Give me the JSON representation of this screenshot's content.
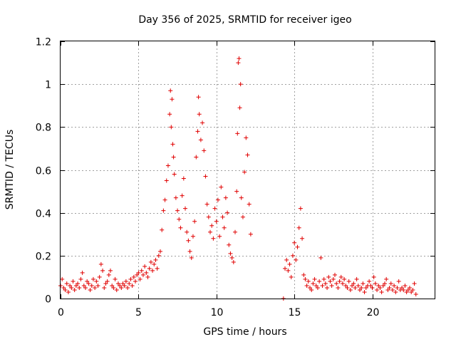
{
  "chart_data": {
    "type": "scatter",
    "title": "Day 356 of 2025, SRMTID for receiver igeo",
    "xlabel": "GPS time / hours",
    "ylabel": "SRMTID / TECUs",
    "xlim": [
      0,
      24
    ],
    "ylim": [
      0,
      1.2
    ],
    "xticks": [
      0,
      5,
      10,
      15,
      20
    ],
    "xtick_labels": [
      "0",
      "5",
      "10",
      "15",
      "20"
    ],
    "yticks": [
      0,
      0.2,
      0.4,
      0.6,
      0.8,
      1.0,
      1.2
    ],
    "ytick_labels": [
      "0",
      "0.2",
      "0.4",
      "0.6",
      "0.8",
      "1",
      "1.2"
    ],
    "grid": true,
    "marker": "+",
    "color": "#e00000",
    "series": [
      {
        "name": "SRMTID",
        "points": [
          [
            0.0,
            0.06
          ],
          [
            0.1,
            0.09
          ],
          [
            0.2,
            0.05
          ],
          [
            0.3,
            0.04
          ],
          [
            0.4,
            0.07
          ],
          [
            0.5,
            0.03
          ],
          [
            0.6,
            0.06
          ],
          [
            0.7,
            0.05
          ],
          [
            0.8,
            0.08
          ],
          [
            0.9,
            0.04
          ],
          [
            1.0,
            0.06
          ],
          [
            1.1,
            0.07
          ],
          [
            1.2,
            0.05
          ],
          [
            1.3,
            0.09
          ],
          [
            1.4,
            0.12
          ],
          [
            1.5,
            0.06
          ],
          [
            1.6,
            0.05
          ],
          [
            1.7,
            0.08
          ],
          [
            1.8,
            0.07
          ],
          [
            1.9,
            0.04
          ],
          [
            2.0,
            0.06
          ],
          [
            2.1,
            0.09
          ],
          [
            2.2,
            0.05
          ],
          [
            2.3,
            0.08
          ],
          [
            2.4,
            0.06
          ],
          [
            2.5,
            0.1
          ],
          [
            2.6,
            0.16
          ],
          [
            2.7,
            0.13
          ],
          [
            2.8,
            0.05
          ],
          [
            2.9,
            0.07
          ],
          [
            3.0,
            0.08
          ],
          [
            3.1,
            0.11
          ],
          [
            3.2,
            0.13
          ],
          [
            3.3,
            0.06
          ],
          [
            3.4,
            0.05
          ],
          [
            3.5,
            0.09
          ],
          [
            3.6,
            0.04
          ],
          [
            3.7,
            0.07
          ],
          [
            3.8,
            0.06
          ],
          [
            3.9,
            0.05
          ],
          [
            4.0,
            0.07
          ],
          [
            4.1,
            0.06
          ],
          [
            4.2,
            0.08
          ],
          [
            4.3,
            0.05
          ],
          [
            4.4,
            0.07
          ],
          [
            4.5,
            0.09
          ],
          [
            4.6,
            0.06
          ],
          [
            4.7,
            0.1
          ],
          [
            4.8,
            0.08
          ],
          [
            4.9,
            0.11
          ],
          [
            5.0,
            0.12
          ],
          [
            5.1,
            0.09
          ],
          [
            5.2,
            0.13
          ],
          [
            5.3,
            0.11
          ],
          [
            5.4,
            0.15
          ],
          [
            5.5,
            0.12
          ],
          [
            5.6,
            0.1
          ],
          [
            5.7,
            0.14
          ],
          [
            5.8,
            0.17
          ],
          [
            5.9,
            0.13
          ],
          [
            6.0,
            0.16
          ],
          [
            6.1,
            0.18
          ],
          [
            6.2,
            0.14
          ],
          [
            6.3,
            0.2
          ],
          [
            6.4,
            0.22
          ],
          [
            6.5,
            0.32
          ],
          [
            6.6,
            0.41
          ],
          [
            6.7,
            0.46
          ],
          [
            6.8,
            0.55
          ],
          [
            6.9,
            0.62
          ],
          [
            7.0,
            0.86
          ],
          [
            7.05,
            0.97
          ],
          [
            7.1,
            0.8
          ],
          [
            7.15,
            0.93
          ],
          [
            7.2,
            0.72
          ],
          [
            7.25,
            0.66
          ],
          [
            7.3,
            0.58
          ],
          [
            7.4,
            0.47
          ],
          [
            7.5,
            0.41
          ],
          [
            7.6,
            0.37
          ],
          [
            7.7,
            0.33
          ],
          [
            7.8,
            0.48
          ],
          [
            7.9,
            0.56
          ],
          [
            8.0,
            0.42
          ],
          [
            8.1,
            0.31
          ],
          [
            8.2,
            0.27
          ],
          [
            8.3,
            0.22
          ],
          [
            8.4,
            0.19
          ],
          [
            8.5,
            0.29
          ],
          [
            8.6,
            0.36
          ],
          [
            8.7,
            0.66
          ],
          [
            8.8,
            0.78
          ],
          [
            8.85,
            0.94
          ],
          [
            8.9,
            0.86
          ],
          [
            9.0,
            0.74
          ],
          [
            9.1,
            0.82
          ],
          [
            9.2,
            0.69
          ],
          [
            9.3,
            0.57
          ],
          [
            9.4,
            0.44
          ],
          [
            9.5,
            0.38
          ],
          [
            9.6,
            0.31
          ],
          [
            9.7,
            0.34
          ],
          [
            9.8,
            0.28
          ],
          [
            9.9,
            0.42
          ],
          [
            10.0,
            0.36
          ],
          [
            10.1,
            0.46
          ],
          [
            10.2,
            0.29
          ],
          [
            10.3,
            0.52
          ],
          [
            10.4,
            0.38
          ],
          [
            10.5,
            0.33
          ],
          [
            10.6,
            0.47
          ],
          [
            10.7,
            0.4
          ],
          [
            10.8,
            0.25
          ],
          [
            10.9,
            0.21
          ],
          [
            11.0,
            0.19
          ],
          [
            11.1,
            0.17
          ],
          [
            11.2,
            0.31
          ],
          [
            11.3,
            0.5
          ],
          [
            11.35,
            0.77
          ],
          [
            11.4,
            1.1
          ],
          [
            11.45,
            1.12
          ],
          [
            11.5,
            0.89
          ],
          [
            11.55,
            1.0
          ],
          [
            11.6,
            0.47
          ],
          [
            11.7,
            0.38
          ],
          [
            11.8,
            0.59
          ],
          [
            11.9,
            0.75
          ],
          [
            12.0,
            0.67
          ],
          [
            12.1,
            0.44
          ],
          [
            12.2,
            0.3
          ],
          [
            14.3,
            0.0
          ],
          [
            14.4,
            0.14
          ],
          [
            14.5,
            0.18
          ],
          [
            14.6,
            0.13
          ],
          [
            14.7,
            0.16
          ],
          [
            14.8,
            0.1
          ],
          [
            14.9,
            0.2
          ],
          [
            15.0,
            0.26
          ],
          [
            15.1,
            0.18
          ],
          [
            15.2,
            0.24
          ],
          [
            15.3,
            0.33
          ],
          [
            15.4,
            0.42
          ],
          [
            15.5,
            0.28
          ],
          [
            15.6,
            0.11
          ],
          [
            15.7,
            0.09
          ],
          [
            15.8,
            0.06
          ],
          [
            15.9,
            0.08
          ],
          [
            16.0,
            0.05
          ],
          [
            16.1,
            0.04
          ],
          [
            16.2,
            0.07
          ],
          [
            16.3,
            0.09
          ],
          [
            16.4,
            0.06
          ],
          [
            16.5,
            0.05
          ],
          [
            16.6,
            0.08
          ],
          [
            16.7,
            0.19
          ],
          [
            16.8,
            0.06
          ],
          [
            16.9,
            0.09
          ],
          [
            17.0,
            0.07
          ],
          [
            17.1,
            0.05
          ],
          [
            17.2,
            0.1
          ],
          [
            17.3,
            0.08
          ],
          [
            17.4,
            0.06
          ],
          [
            17.5,
            0.09
          ],
          [
            17.6,
            0.11
          ],
          [
            17.7,
            0.07
          ],
          [
            17.8,
            0.05
          ],
          [
            17.9,
            0.08
          ],
          [
            18.0,
            0.1
          ],
          [
            18.1,
            0.07
          ],
          [
            18.2,
            0.09
          ],
          [
            18.3,
            0.06
          ],
          [
            18.4,
            0.05
          ],
          [
            18.5,
            0.08
          ],
          [
            18.6,
            0.04
          ],
          [
            18.7,
            0.06
          ],
          [
            18.8,
            0.07
          ],
          [
            18.9,
            0.05
          ],
          [
            19.0,
            0.09
          ],
          [
            19.1,
            0.06
          ],
          [
            19.2,
            0.04
          ],
          [
            19.3,
            0.05
          ],
          [
            19.4,
            0.07
          ],
          [
            19.5,
            0.03
          ],
          [
            19.6,
            0.05
          ],
          [
            19.7,
            0.06
          ],
          [
            19.8,
            0.08
          ],
          [
            19.9,
            0.06
          ],
          [
            20.0,
            0.05
          ],
          [
            20.1,
            0.1
          ],
          [
            20.2,
            0.07
          ],
          [
            20.3,
            0.04
          ],
          [
            20.4,
            0.06
          ],
          [
            20.5,
            0.05
          ],
          [
            20.6,
            0.03
          ],
          [
            20.7,
            0.06
          ],
          [
            20.8,
            0.07
          ],
          [
            20.9,
            0.09
          ],
          [
            21.0,
            0.04
          ],
          [
            21.1,
            0.05
          ],
          [
            21.2,
            0.07
          ],
          [
            21.3,
            0.04
          ],
          [
            21.4,
            0.06
          ],
          [
            21.5,
            0.03
          ],
          [
            21.6,
            0.05
          ],
          [
            21.7,
            0.08
          ],
          [
            21.8,
            0.04
          ],
          [
            21.9,
            0.05
          ],
          [
            22.0,
            0.04
          ],
          [
            22.1,
            0.06
          ],
          [
            22.2,
            0.03
          ],
          [
            22.3,
            0.04
          ],
          [
            22.4,
            0.05
          ],
          [
            22.5,
            0.03
          ],
          [
            22.6,
            0.04
          ],
          [
            22.7,
            0.07
          ],
          [
            22.8,
            0.02
          ]
        ]
      }
    ]
  }
}
